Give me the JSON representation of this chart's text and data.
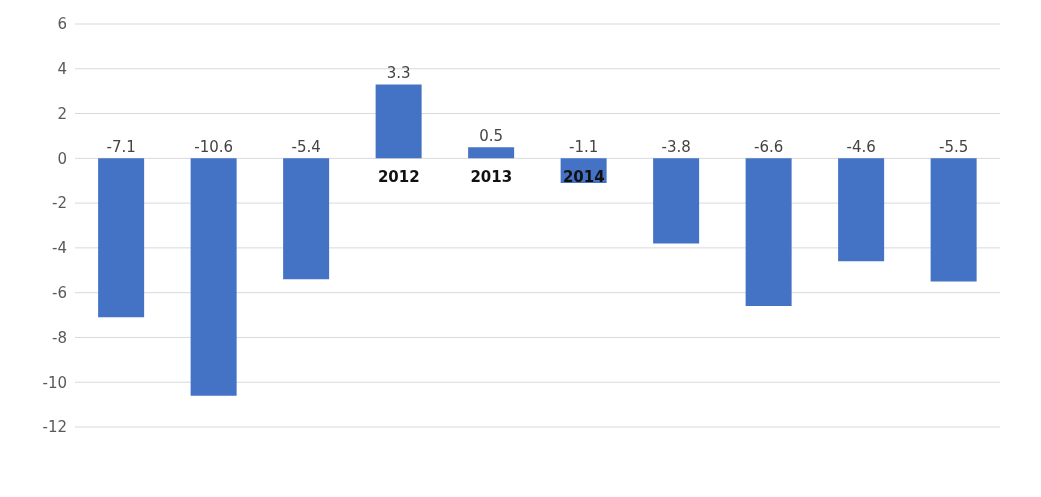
{
  "chart_data": {
    "type": "bar",
    "categories": [
      null,
      null,
      null,
      "2012",
      "2013",
      "2014",
      null,
      null,
      null,
      null
    ],
    "values": [
      -7.1,
      -10.6,
      -5.4,
      3.3,
      0.5,
      -1.1,
      -3.8,
      -6.6,
      -4.6,
      -5.5
    ],
    "color": "#4472c4",
    "ylim": [
      -12,
      6
    ],
    "yticks": [
      -12,
      -10,
      -8,
      -6,
      -4,
      -2,
      0,
      2,
      4,
      6
    ],
    "grid": "y",
    "data_labels": true
  }
}
